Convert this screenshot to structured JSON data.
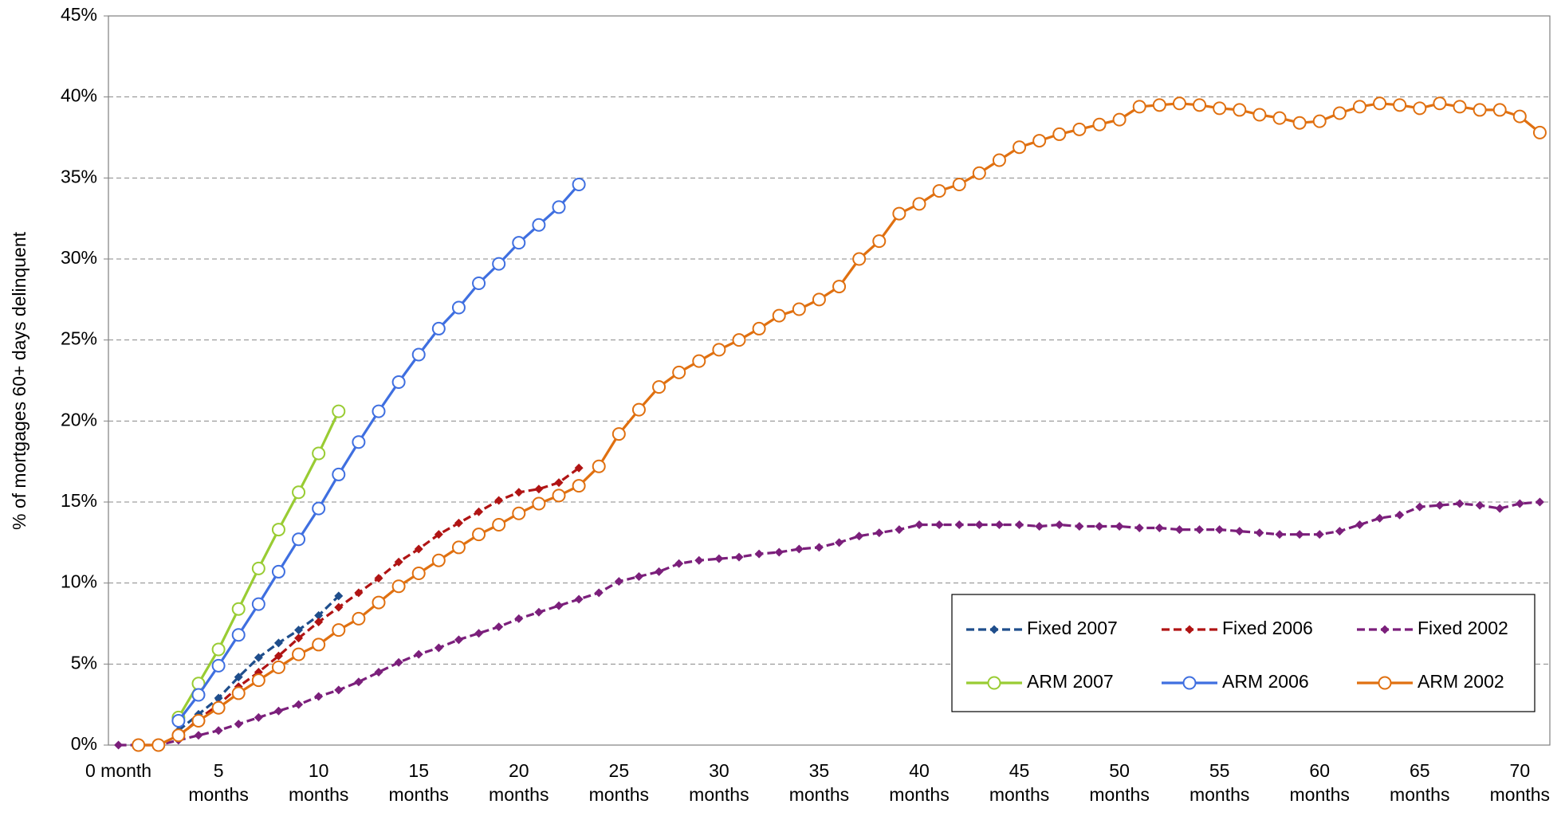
{
  "chart_data": {
    "type": "line",
    "y_label": "% of mortgages 60+ days delinquent",
    "categories": [
      "0 month",
      null,
      null,
      null,
      null,
      "5 months",
      null,
      null,
      null,
      null,
      "10 months",
      null,
      null,
      null,
      null,
      "15 months",
      null,
      null,
      null,
      null,
      "20 months",
      null,
      null,
      null,
      null,
      "25 months",
      null,
      null,
      null,
      null,
      "30 months",
      null,
      null,
      null,
      null,
      "35 months",
      null,
      null,
      null,
      null,
      "40 months",
      null,
      null,
      null,
      null,
      "45 months",
      null,
      null,
      null,
      null,
      "50 months",
      null,
      null,
      null,
      null,
      "55 months",
      null,
      null,
      null,
      null,
      "60 months",
      null,
      null,
      null,
      null,
      "65 months",
      null,
      null,
      null,
      null,
      "70 months",
      null
    ],
    "ylim": [
      0,
      45
    ],
    "yticks": [
      {
        "value": 0,
        "label": "0%"
      },
      {
        "value": 5,
        "label": "5%"
      },
      {
        "value": 10,
        "label": "10%"
      },
      {
        "value": 15,
        "label": "15%"
      },
      {
        "value": 20,
        "label": "20%"
      },
      {
        "value": 25,
        "label": "25%"
      },
      {
        "value": 30,
        "label": "30%"
      },
      {
        "value": 35,
        "label": "35%"
      },
      {
        "value": 40,
        "label": "40%"
      },
      {
        "value": 45,
        "label": "45%"
      }
    ],
    "grid": true,
    "legend": "lower right",
    "series": [
      {
        "name": "Fixed 2007",
        "color": "#1f4e8c",
        "dash": true,
        "marker": "diamond",
        "values": [
          null,
          null,
          null,
          0.9,
          1.9,
          2.9,
          4.2,
          5.4,
          6.3,
          7.1,
          8.0,
          9.2,
          null,
          null,
          null,
          null,
          null,
          null,
          null,
          null,
          null,
          null,
          null,
          null,
          null,
          null,
          null,
          null,
          null,
          null,
          null,
          null,
          null,
          null,
          null,
          null,
          null,
          null,
          null,
          null,
          null,
          null,
          null,
          null,
          null,
          null,
          null,
          null,
          null,
          null,
          null,
          null,
          null,
          null,
          null,
          null,
          null,
          null,
          null,
          null,
          null,
          null,
          null,
          null,
          null,
          null,
          null,
          null,
          null,
          null,
          null,
          null
        ]
      },
      {
        "name": "Fixed 2006",
        "color": "#b01414",
        "dash": true,
        "marker": "diamond",
        "values": [
          null,
          null,
          null,
          0.5,
          1.6,
          2.5,
          3.6,
          4.5,
          5.5,
          6.6,
          7.6,
          8.5,
          9.4,
          10.3,
          11.3,
          12.1,
          13.0,
          13.7,
          14.4,
          15.1,
          15.6,
          15.8,
          16.2,
          17.1,
          null,
          null,
          null,
          null,
          null,
          null,
          null,
          null,
          null,
          null,
          null,
          null,
          null,
          null,
          null,
          null,
          null,
          null,
          null,
          null,
          null,
          null,
          null,
          null,
          null,
          null,
          null,
          null,
          null,
          null,
          null,
          null,
          null,
          null,
          null,
          null,
          null,
          null,
          null,
          null,
          null,
          null,
          null,
          null,
          null,
          null,
          null,
          null
        ]
      },
      {
        "name": "Fixed 2002",
        "color": "#7b1f7b",
        "dash": true,
        "marker": "diamond",
        "values": [
          0,
          0,
          0,
          0.3,
          0.6,
          0.9,
          1.3,
          1.7,
          2.1,
          2.5,
          3.0,
          3.4,
          3.9,
          4.5,
          5.1,
          5.6,
          6.0,
          6.5,
          6.9,
          7.3,
          7.8,
          8.2,
          8.6,
          9.0,
          9.4,
          10.1,
          10.4,
          10.7,
          11.2,
          11.4,
          11.5,
          11.6,
          11.8,
          11.9,
          12.1,
          12.2,
          12.5,
          12.9,
          13.1,
          13.3,
          13.6,
          13.6,
          13.6,
          13.6,
          13.6,
          13.6,
          13.5,
          13.6,
          13.5,
          13.5,
          13.5,
          13.4,
          13.4,
          13.3,
          13.3,
          13.3,
          13.2,
          13.1,
          13.0,
          13.0,
          13.0,
          13.2,
          13.6,
          14.0,
          14.2,
          14.7,
          14.8,
          14.9,
          14.8,
          14.6,
          14.9,
          15.0
        ]
      },
      {
        "name": "ARM 2007",
        "color": "#99cc33",
        "dash": false,
        "marker": "circle",
        "values": [
          null,
          null,
          null,
          1.7,
          3.8,
          5.9,
          8.4,
          10.9,
          13.3,
          15.6,
          18.0,
          20.6,
          null,
          null,
          null,
          null,
          null,
          null,
          null,
          null,
          null,
          null,
          null,
          null,
          null,
          null,
          null,
          null,
          null,
          null,
          null,
          null,
          null,
          null,
          null,
          null,
          null,
          null,
          null,
          null,
          null,
          null,
          null,
          null,
          null,
          null,
          null,
          null,
          null,
          null,
          null,
          null,
          null,
          null,
          null,
          null,
          null,
          null,
          null,
          null,
          null,
          null,
          null,
          null,
          null,
          null,
          null,
          null,
          null,
          null,
          null,
          null
        ]
      },
      {
        "name": "ARM 2006",
        "color": "#3f6fe0",
        "dash": false,
        "marker": "circle",
        "values": [
          null,
          null,
          null,
          1.5,
          3.1,
          4.9,
          6.8,
          8.7,
          10.7,
          12.7,
          14.6,
          16.7,
          18.7,
          20.6,
          22.4,
          24.1,
          25.7,
          27.0,
          28.5,
          29.7,
          31.0,
          32.1,
          33.2,
          34.6,
          null,
          null,
          null,
          null,
          null,
          null,
          null,
          null,
          null,
          null,
          null,
          null,
          null,
          null,
          null,
          null,
          null,
          null,
          null,
          null,
          null,
          null,
          null,
          null,
          null,
          null,
          null,
          null,
          null,
          null,
          null,
          null,
          null,
          null,
          null,
          null,
          null,
          null,
          null,
          null,
          null,
          null,
          null,
          null,
          null,
          null,
          null,
          null
        ]
      },
      {
        "name": "ARM 2002",
        "color": "#e07010",
        "dash": false,
        "marker": "circle",
        "values": [
          null,
          0,
          0,
          0.6,
          1.5,
          2.3,
          3.2,
          4.0,
          4.8,
          5.6,
          6.2,
          7.1,
          7.8,
          8.8,
          9.8,
          10.6,
          11.4,
          12.2,
          13.0,
          13.6,
          14.3,
          14.9,
          15.4,
          16.0,
          17.2,
          19.2,
          20.7,
          22.1,
          23.0,
          23.7,
          24.4,
          25.0,
          25.7,
          26.5,
          26.9,
          27.5,
          28.3,
          30.0,
          31.1,
          32.8,
          33.4,
          34.2,
          34.6,
          35.3,
          36.1,
          36.9,
          37.3,
          37.7,
          38.0,
          38.3,
          38.6,
          39.4,
          39.5,
          39.6,
          39.5,
          39.3,
          39.2,
          38.9,
          38.7,
          38.4,
          38.5,
          39.0,
          39.4,
          39.6,
          39.5,
          39.3,
          39.6,
          39.4,
          39.2,
          39.2,
          38.8,
          37.8
        ]
      }
    ]
  }
}
